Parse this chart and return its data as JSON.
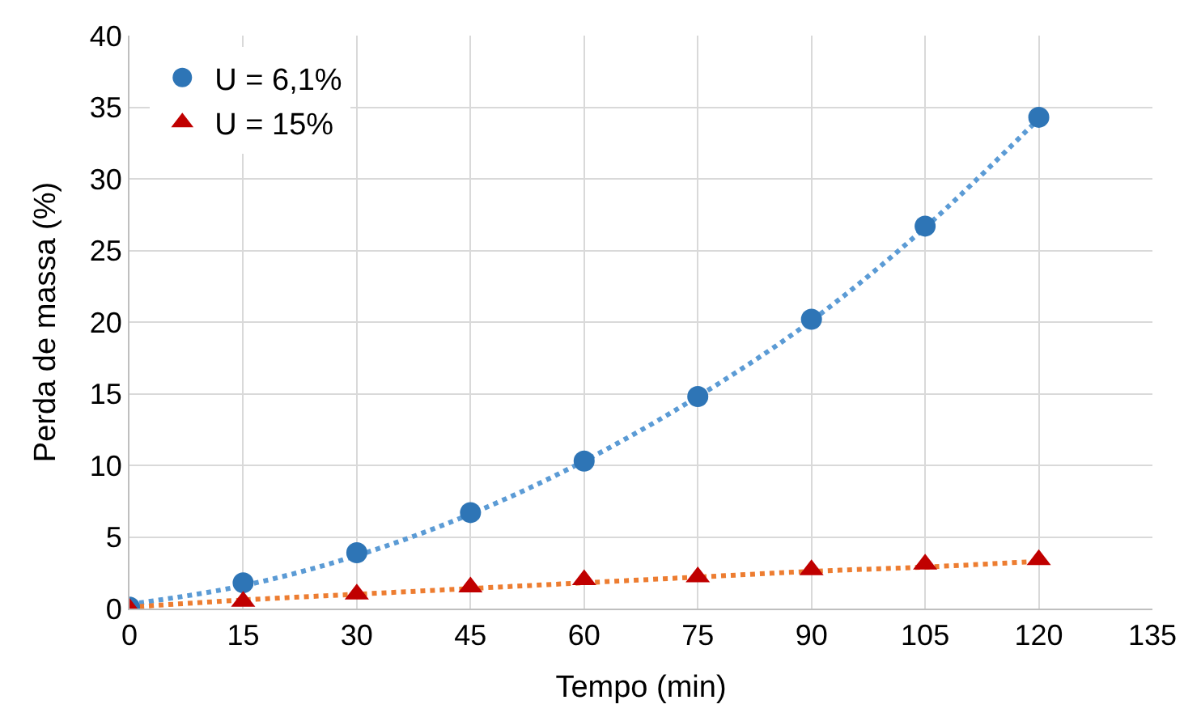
{
  "chart_data": {
    "type": "scatter",
    "xlabel": "Tempo (min)",
    "ylabel": "Perda de massa (%)",
    "x": [
      0,
      15,
      30,
      45,
      60,
      75,
      90,
      105,
      120
    ],
    "series": [
      {
        "name": "U = 6,1%",
        "color": "#2e75b6",
        "marker": "circle",
        "values": [
          0.1,
          1.8,
          3.9,
          6.7,
          10.3,
          14.8,
          20.2,
          26.7,
          34.3
        ]
      },
      {
        "name": "U = 15%",
        "color": "#c00000",
        "marker": "triangle",
        "values": [
          0.0,
          0.5,
          1.0,
          1.5,
          2.0,
          2.2,
          2.7,
          3.1,
          3.4
        ]
      },
      {
        "type": "line",
        "color": "#5b9bd5",
        "line_style": "dotted",
        "x": [
          0,
          15,
          30,
          45,
          60,
          75,
          90,
          105,
          120
        ],
        "values": [
          0.3,
          1.6,
          3.7,
          6.6,
          10.3,
          14.8,
          20.1,
          26.6,
          34.2
        ]
      },
      {
        "type": "line",
        "color": "#ed7d31",
        "line_style": "dotted",
        "x": [
          0,
          15,
          30,
          45,
          60,
          75,
          90,
          105,
          120
        ],
        "values": [
          0.1,
          0.6,
          1.0,
          1.4,
          1.8,
          2.2,
          2.6,
          2.9,
          3.3
        ]
      }
    ],
    "xlim": [
      0,
      135
    ],
    "xticks": [
      0,
      15,
      30,
      45,
      60,
      75,
      90,
      105,
      120,
      135
    ],
    "ylim": [
      0,
      40
    ],
    "yticks": [
      0,
      5,
      10,
      15,
      20,
      25,
      30,
      35,
      40
    ],
    "grid": true,
    "legend": "top left"
  }
}
